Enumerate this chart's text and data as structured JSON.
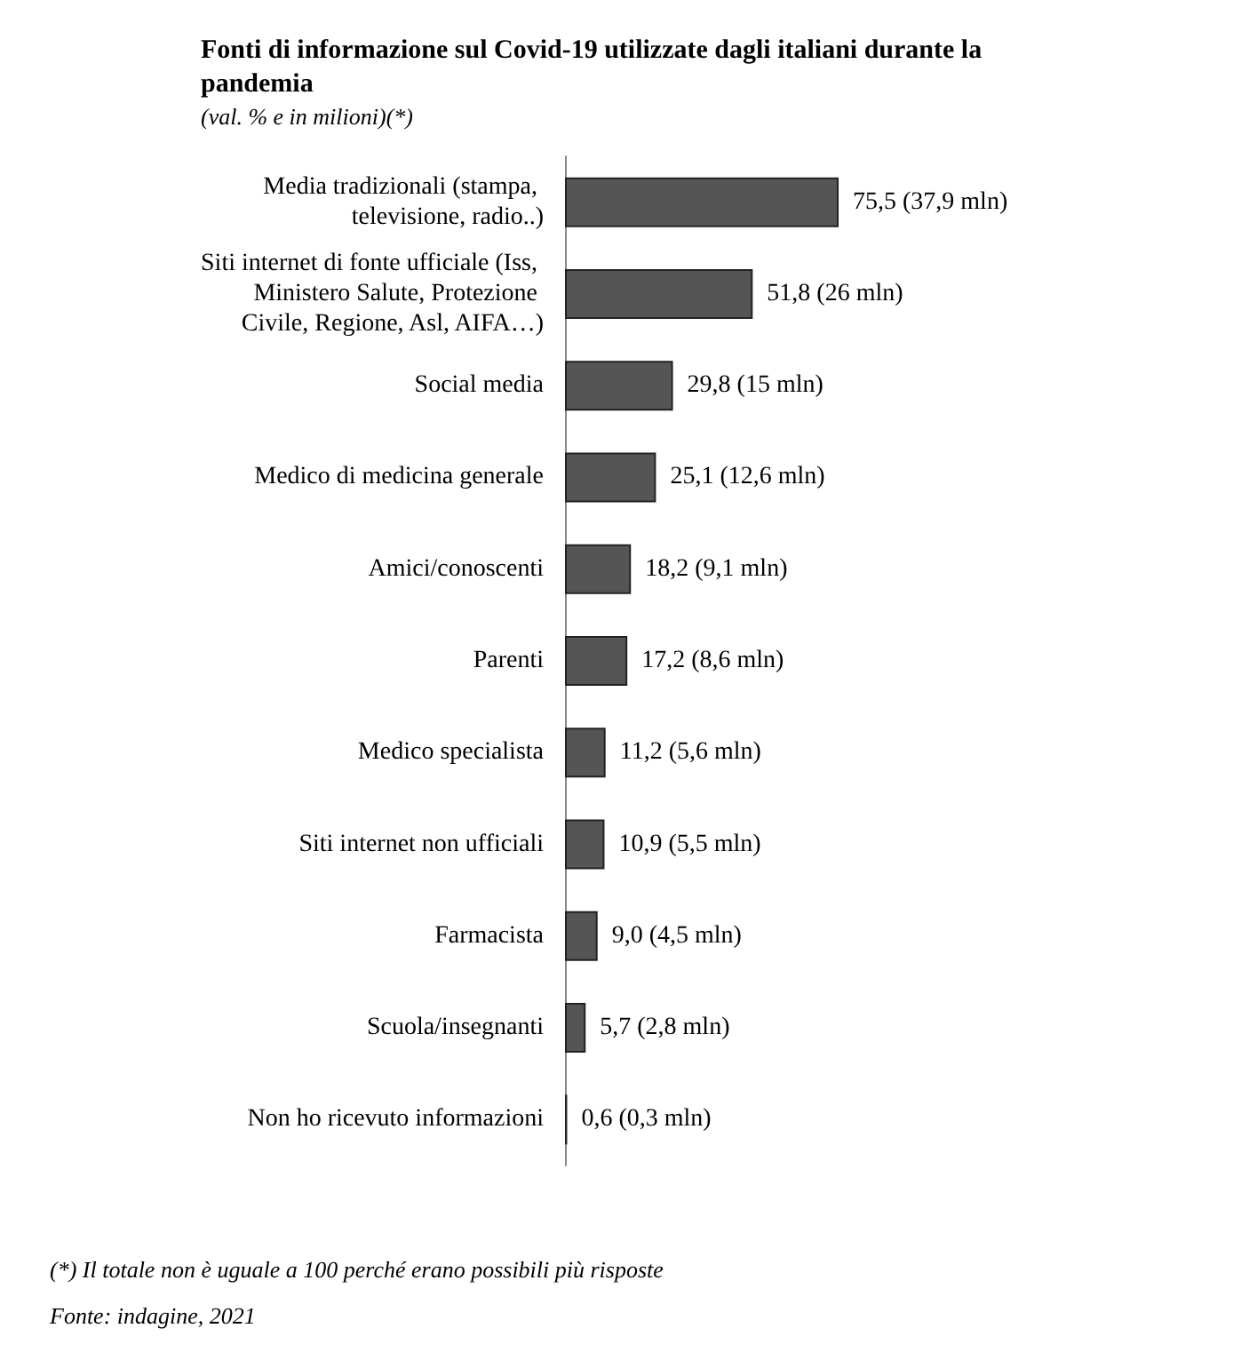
{
  "chart_data": {
    "type": "bar",
    "orientation": "horizontal",
    "title": "Fonti di informazione sul Covid-19 utilizzate dagli italiani durante la pandemia",
    "subtitle": "(val. % e in milioni)(*)",
    "categories": [
      "Media tradizionali (stampa, televisione, radio..)",
      "Siti internet di fonte ufficiale (Iss, Ministero Salute, Protezione Civile, Regione, Asl, AIFA…)",
      "Social media",
      "Medico di medicina generale",
      "Amici/conoscenti",
      "Parenti",
      "Medico specialista",
      "Siti internet non ufficiali",
      "Farmacista",
      "Scuola/insegnanti",
      "Non ho ricevuto informazioni"
    ],
    "values": [
      75.5,
      51.8,
      29.8,
      25.1,
      18.2,
      17.2,
      11.2,
      10.9,
      9.0,
      5.7,
      0.6
    ],
    "value_labels": [
      "75,5 (37,9 mln)",
      "51,8 (26 mln)",
      "29,8 (15 mln)",
      "25,1 (12,6 mln)",
      "18,2 (9,1 mln)",
      "17,2 (8,6 mln)",
      "11,2 (5,6 mln)",
      "10,9 (5,5 mln)",
      "9,0 (4,5 mln)",
      "5,7 (2,8 mln)",
      "0,6 (0,3 mln)"
    ],
    "color": "#555555",
    "annotations": [
      "(*) Il totale non è uguale a 100 perché erano possibili più risposte",
      "Fonte: indagine, 2021"
    ]
  }
}
